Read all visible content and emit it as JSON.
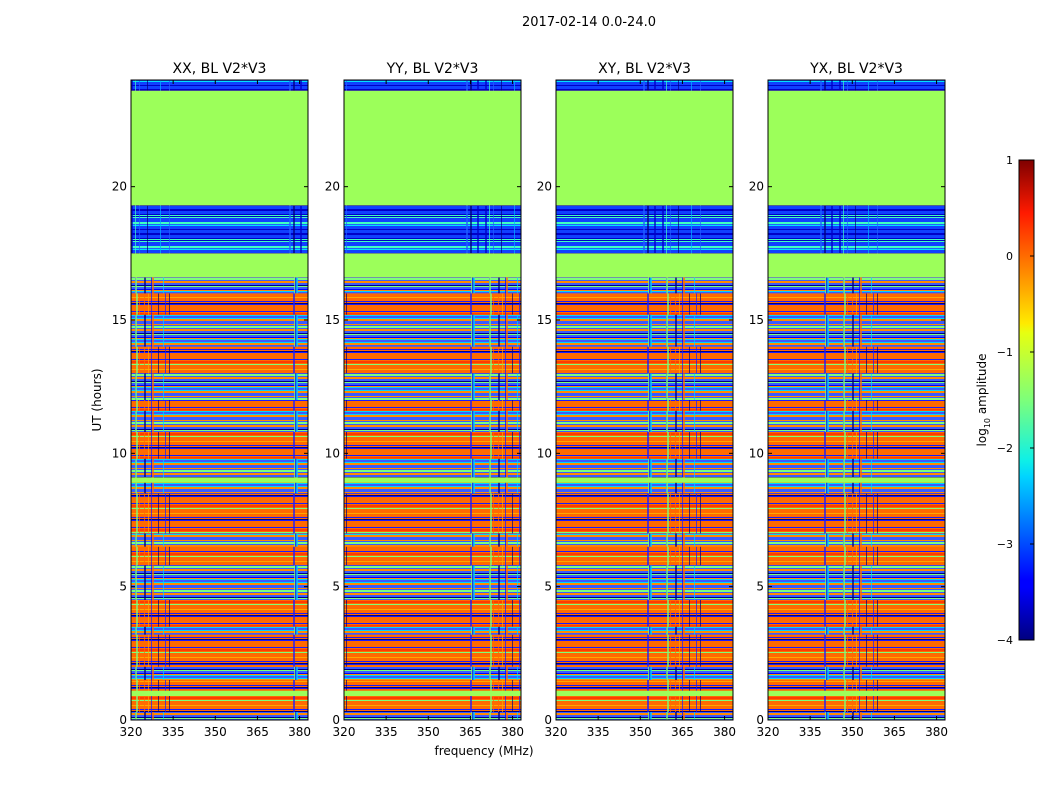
{
  "figure": {
    "suptitle": "2017-02-14 0.0-24.0",
    "xlabel": "frequency (MHz)",
    "ylabel": "UT (hours)"
  },
  "chart_data": {
    "type": "heatmap",
    "x_range": [
      320,
      383
    ],
    "y_range": [
      0,
      24
    ],
    "x_ticks": [
      320,
      335,
      350,
      365,
      380
    ],
    "y_ticks": [
      0,
      5,
      10,
      15,
      20
    ],
    "panels": [
      {
        "title": "XX, BL V2*V3"
      },
      {
        "title": "YY, BL V2*V3"
      },
      {
        "title": "XY, BL V2*V3"
      },
      {
        "title": "YX, BL V2*V3"
      }
    ],
    "colorbar": {
      "label": "log10 amplitude",
      "label_main": "log",
      "label_sub": "10",
      "label_suffix": " amplitude",
      "range": [
        -4,
        1
      ],
      "ticks": [
        -4,
        -3,
        -2,
        -1,
        0,
        1
      ],
      "tick_labels": [
        "−4",
        "−3",
        "−2",
        "−1",
        "0",
        "1"
      ]
    },
    "time_bands": [
      {
        "start": 0.0,
        "end": 0.3,
        "kind": "mixed"
      },
      {
        "start": 0.3,
        "end": 0.9,
        "kind": "orange"
      },
      {
        "start": 0.9,
        "end": 1.1,
        "kind": "green"
      },
      {
        "start": 1.1,
        "end": 1.5,
        "kind": "orange"
      },
      {
        "start": 1.5,
        "end": 2.0,
        "kind": "mixed"
      },
      {
        "start": 2.0,
        "end": 2.5,
        "kind": "orange"
      },
      {
        "start": 2.5,
        "end": 3.2,
        "kind": "orange"
      },
      {
        "start": 3.2,
        "end": 3.5,
        "kind": "mixed"
      },
      {
        "start": 3.5,
        "end": 4.5,
        "kind": "orange"
      },
      {
        "start": 4.5,
        "end": 5.8,
        "kind": "mixed"
      },
      {
        "start": 5.8,
        "end": 6.5,
        "kind": "orange"
      },
      {
        "start": 6.5,
        "end": 7.0,
        "kind": "mixed"
      },
      {
        "start": 7.0,
        "end": 8.5,
        "kind": "orange"
      },
      {
        "start": 8.5,
        "end": 8.9,
        "kind": "mixed"
      },
      {
        "start": 8.9,
        "end": 9.1,
        "kind": "green"
      },
      {
        "start": 9.1,
        "end": 9.8,
        "kind": "mixed"
      },
      {
        "start": 9.8,
        "end": 10.8,
        "kind": "orange"
      },
      {
        "start": 10.8,
        "end": 11.6,
        "kind": "mixed"
      },
      {
        "start": 11.6,
        "end": 12.0,
        "kind": "orange"
      },
      {
        "start": 12.0,
        "end": 13.0,
        "kind": "mixed"
      },
      {
        "start": 13.0,
        "end": 14.0,
        "kind": "orange"
      },
      {
        "start": 14.0,
        "end": 15.2,
        "kind": "mixed"
      },
      {
        "start": 15.2,
        "end": 16.0,
        "kind": "orange"
      },
      {
        "start": 16.0,
        "end": 16.6,
        "kind": "mixed"
      },
      {
        "start": 16.6,
        "end": 17.5,
        "kind": "green"
      },
      {
        "start": 17.5,
        "end": 19.3,
        "kind": "blue"
      },
      {
        "start": 19.3,
        "end": 23.6,
        "kind": "green"
      },
      {
        "start": 23.6,
        "end": 24.0,
        "kind": "blue"
      }
    ],
    "notes": "Dynamic spectra of log10 amplitude vs frequency and UT; frequency band ~362-381 MHz shows enhanced (cyan/green) noise streaks."
  }
}
